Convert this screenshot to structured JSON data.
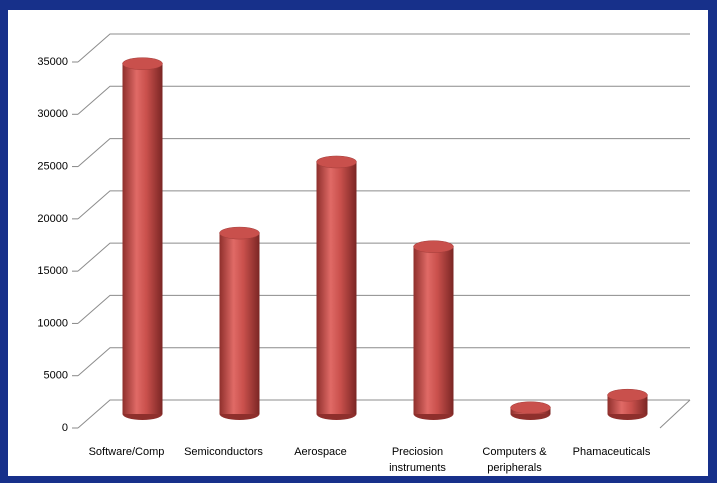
{
  "chart_data": {
    "type": "bar",
    "categories": [
      "Software/Comp",
      "Semiconductors",
      "Aerospace",
      "Preciosion instruments",
      "Computers & peripherals",
      "Phamaceuticals"
    ],
    "values": [
      33500,
      17300,
      24100,
      16000,
      600,
      1800
    ],
    "color": "#c0504d",
    "ylim": [
      0,
      35000
    ],
    "yticks": [
      0,
      5000,
      10000,
      15000,
      20000,
      25000,
      30000,
      35000
    ],
    "grid": true
  }
}
